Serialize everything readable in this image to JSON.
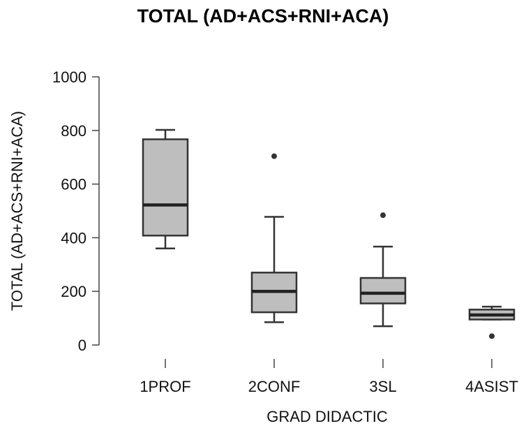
{
  "chart_data": {
    "type": "boxplot",
    "title": "TOTAL (AD+ACS+RNI+ACA)",
    "xlabel": "GRAD DIDACTIC",
    "ylabel": "TOTAL (AD+ACS+RNI+ACA)",
    "ylim": [
      0,
      1000
    ],
    "yticks": [
      0,
      200,
      400,
      600,
      800,
      1000
    ],
    "categories": [
      "1PROF",
      "2CONF",
      "3SL",
      "4ASIST"
    ],
    "boxes": [
      {
        "category": "1PROF",
        "min": 360,
        "q1": 408,
        "median": 522,
        "q3": 767,
        "max": 802,
        "outliers": []
      },
      {
        "category": "2CONF",
        "min": 85,
        "q1": 122,
        "median": 200,
        "q3": 270,
        "max": 478,
        "outliers": [
          704
        ]
      },
      {
        "category": "3SL",
        "min": 70,
        "q1": 155,
        "median": 193,
        "q3": 250,
        "max": 367,
        "outliers": [
          484
        ]
      },
      {
        "category": "4ASIST",
        "min": 95,
        "q1": 95,
        "median": 112,
        "q3": 132,
        "max": 143,
        "outliers": [
          33
        ]
      }
    ],
    "box_fill": "#bebebe",
    "box_stroke": "#333333",
    "grid": false
  }
}
